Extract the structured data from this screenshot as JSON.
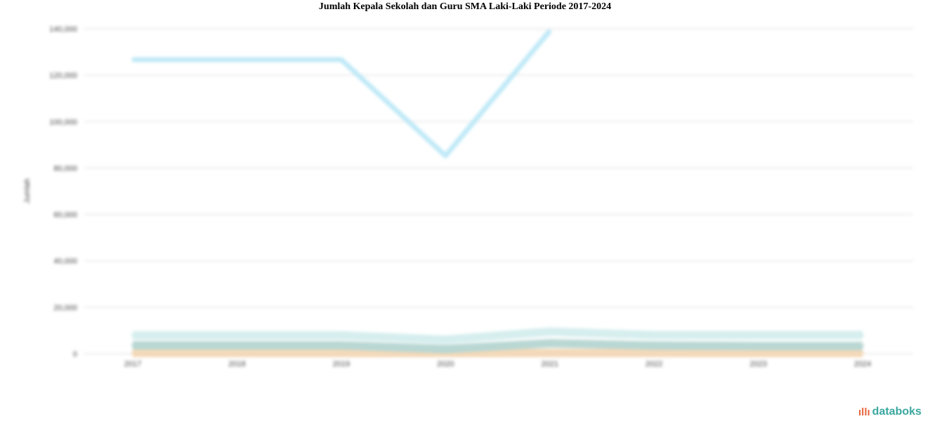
{
  "chart_data": {
    "type": "line",
    "title": "Jumlah Kepala Sekolah dan Guru SMA Laki-Laki Periode 2017-2024",
    "ylabel": "Jumlah",
    "xlabel": "",
    "categories": [
      "2017",
      "2018",
      "2019",
      "2020",
      "2021",
      "2022",
      "2023",
      "2024"
    ],
    "ylim": [
      0,
      140000
    ],
    "yticks": [
      0,
      20000,
      40000,
      60000,
      80000,
      100000,
      120000,
      140000
    ],
    "ytick_labels": [
      "0",
      "20,000",
      "40,000",
      "60,000",
      "80,000",
      "100,000",
      "120,000",
      "140,000"
    ],
    "grid": true,
    "series": [
      {
        "color": "#bfe9f7",
        "values": [
          126700,
          126700,
          126700,
          85300,
          139100,
          null,
          null,
          null
        ]
      },
      {
        "color": "#d6eeee",
        "values": [
          7900,
          7900,
          7900,
          6000,
          9500,
          8000,
          8000,
          8000
        ]
      },
      {
        "color": "#b9d7d3",
        "values": [
          3600,
          3600,
          3600,
          2000,
          4500,
          3500,
          3300,
          3300
        ]
      },
      {
        "color": "#f3d9b9",
        "values": [
          300,
          300,
          300,
          300,
          300,
          300,
          300,
          300
        ]
      }
    ]
  },
  "logo": {
    "text": "databoks",
    "icon": "databoks-logo-icon"
  }
}
